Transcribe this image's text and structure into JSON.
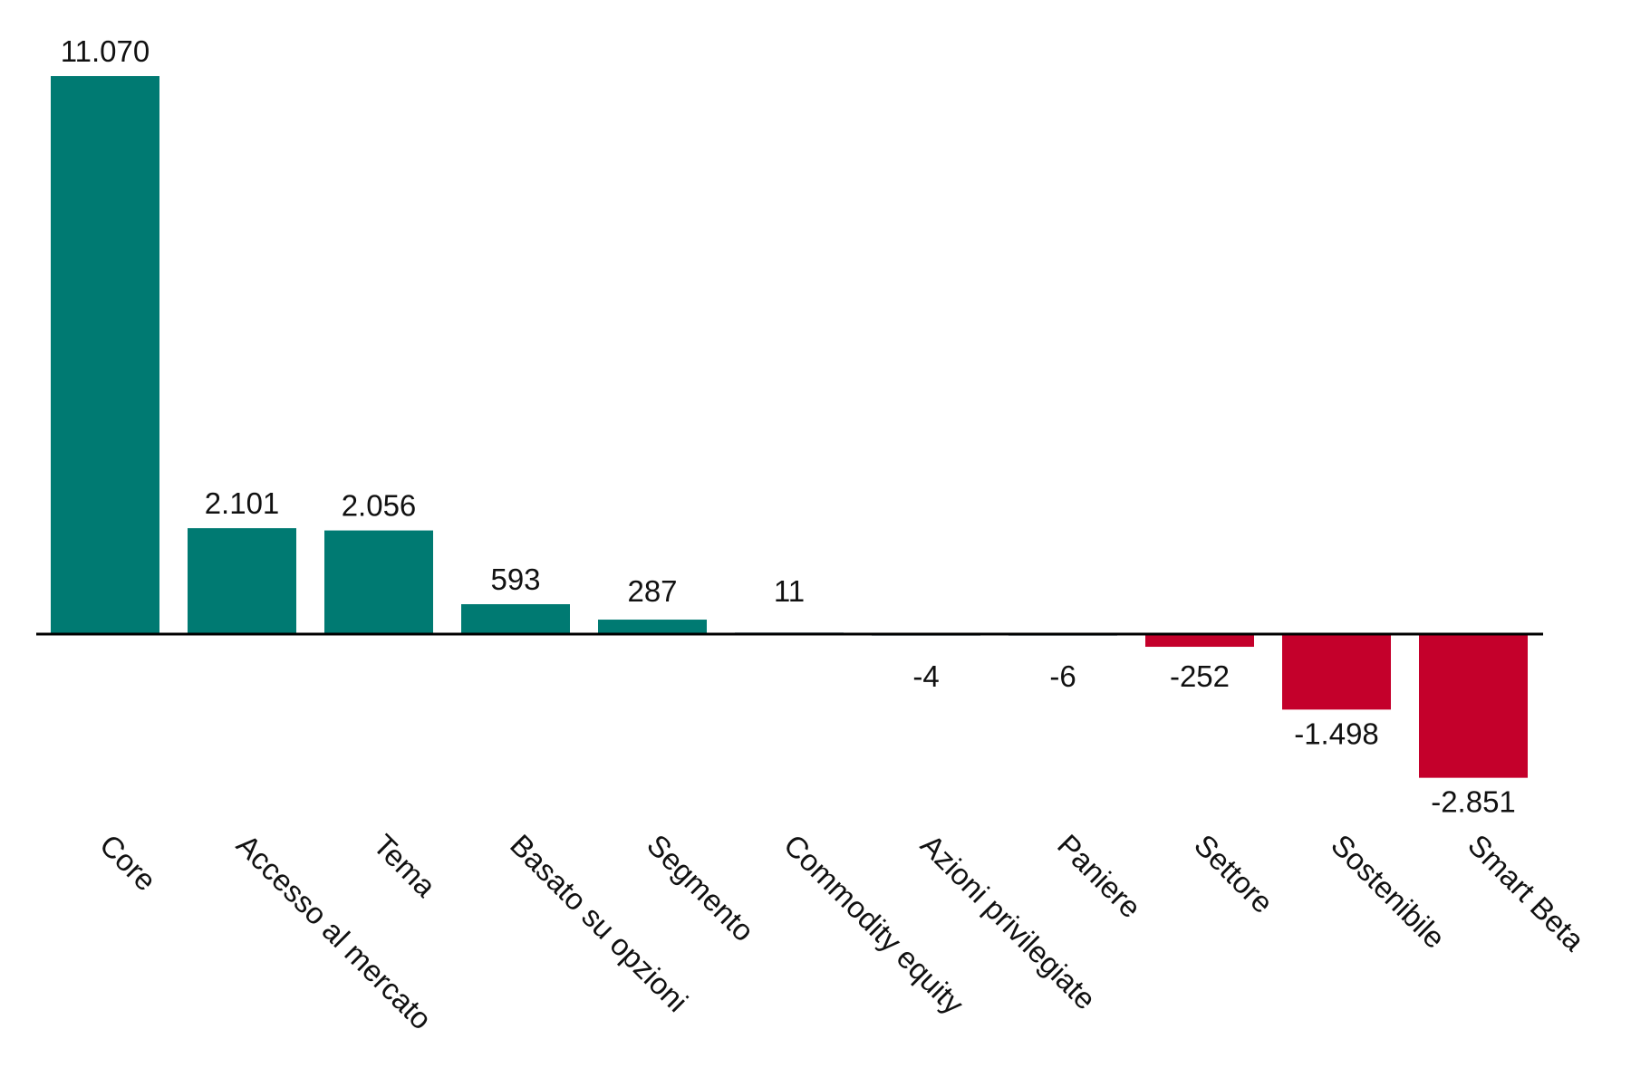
{
  "chart_data": {
    "type": "bar",
    "title": "",
    "xlabel": "",
    "ylabel": "",
    "categories": [
      "Core",
      "Accesso al mercato",
      "Tema",
      "Basato su opzioni",
      "Segmento",
      "Commodity equity",
      "Azioni privilegiate",
      "Paniere",
      "Settore",
      "Sostenibile",
      "Smart Beta"
    ],
    "values": [
      11070,
      2101,
      2056,
      593,
      287,
      11,
      -4,
      -6,
      -252,
      -1498,
      -2851
    ],
    "value_labels": [
      "11.070",
      "2.101",
      "2.056",
      "593",
      "287",
      "11",
      "-4",
      "-6",
      "-252",
      "-1.498",
      "-2.851"
    ],
    "ylim": [
      -2851,
      11070
    ],
    "grid": false,
    "legend": "none",
    "colors": {
      "positive": "#007a72",
      "negative": "#c4002b",
      "axis": "#000000",
      "text": "#111111"
    }
  }
}
